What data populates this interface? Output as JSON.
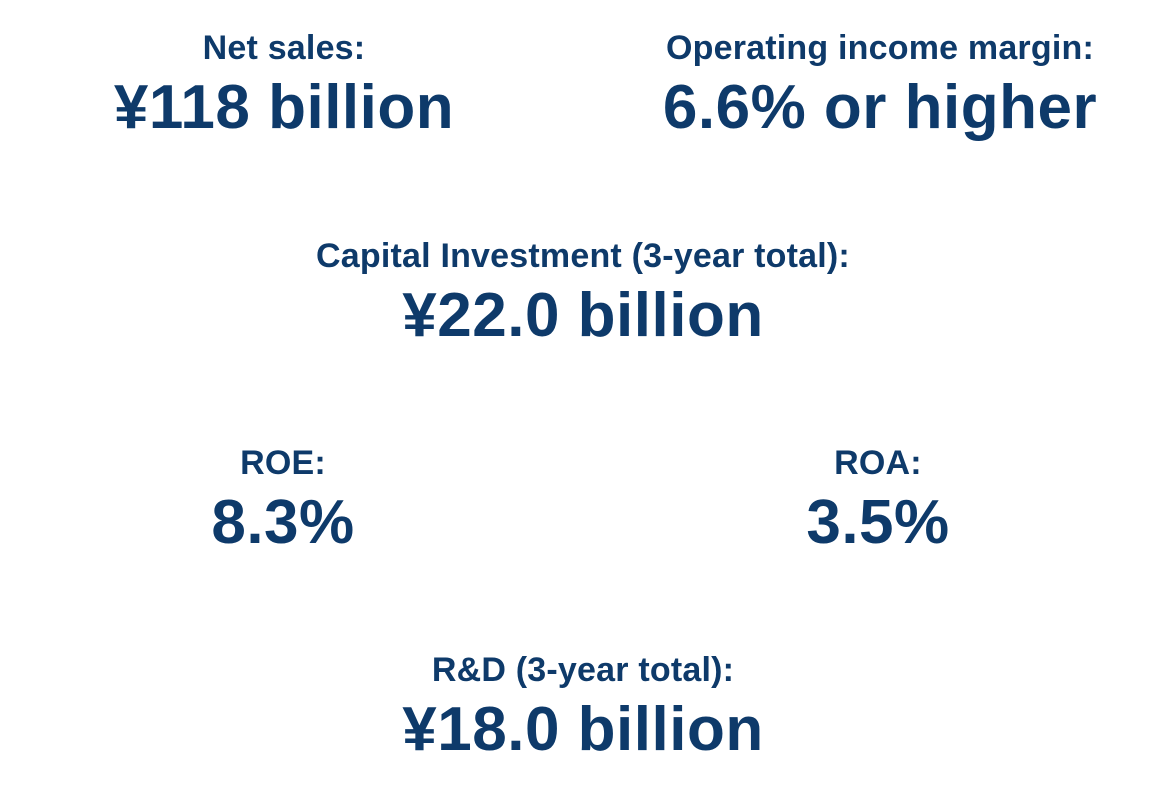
{
  "metrics": {
    "net_sales": {
      "label": "Net sales:",
      "value": "¥118 billion"
    },
    "operating_income_margin": {
      "label": "Operating income margin:",
      "value": "6.6% or higher"
    },
    "capital_investment": {
      "label": "Capital Investment (3-year total):",
      "value": "¥22.0 billion"
    },
    "roe": {
      "label": "ROE:",
      "value": "8.3%"
    },
    "roa": {
      "label": "ROA:",
      "value": "3.5%"
    },
    "rnd": {
      "label": "R&D (3-year total):",
      "value": "¥18.0 billion"
    }
  },
  "colors": {
    "text": "#0e3a6a",
    "background": "#ffffff"
  }
}
